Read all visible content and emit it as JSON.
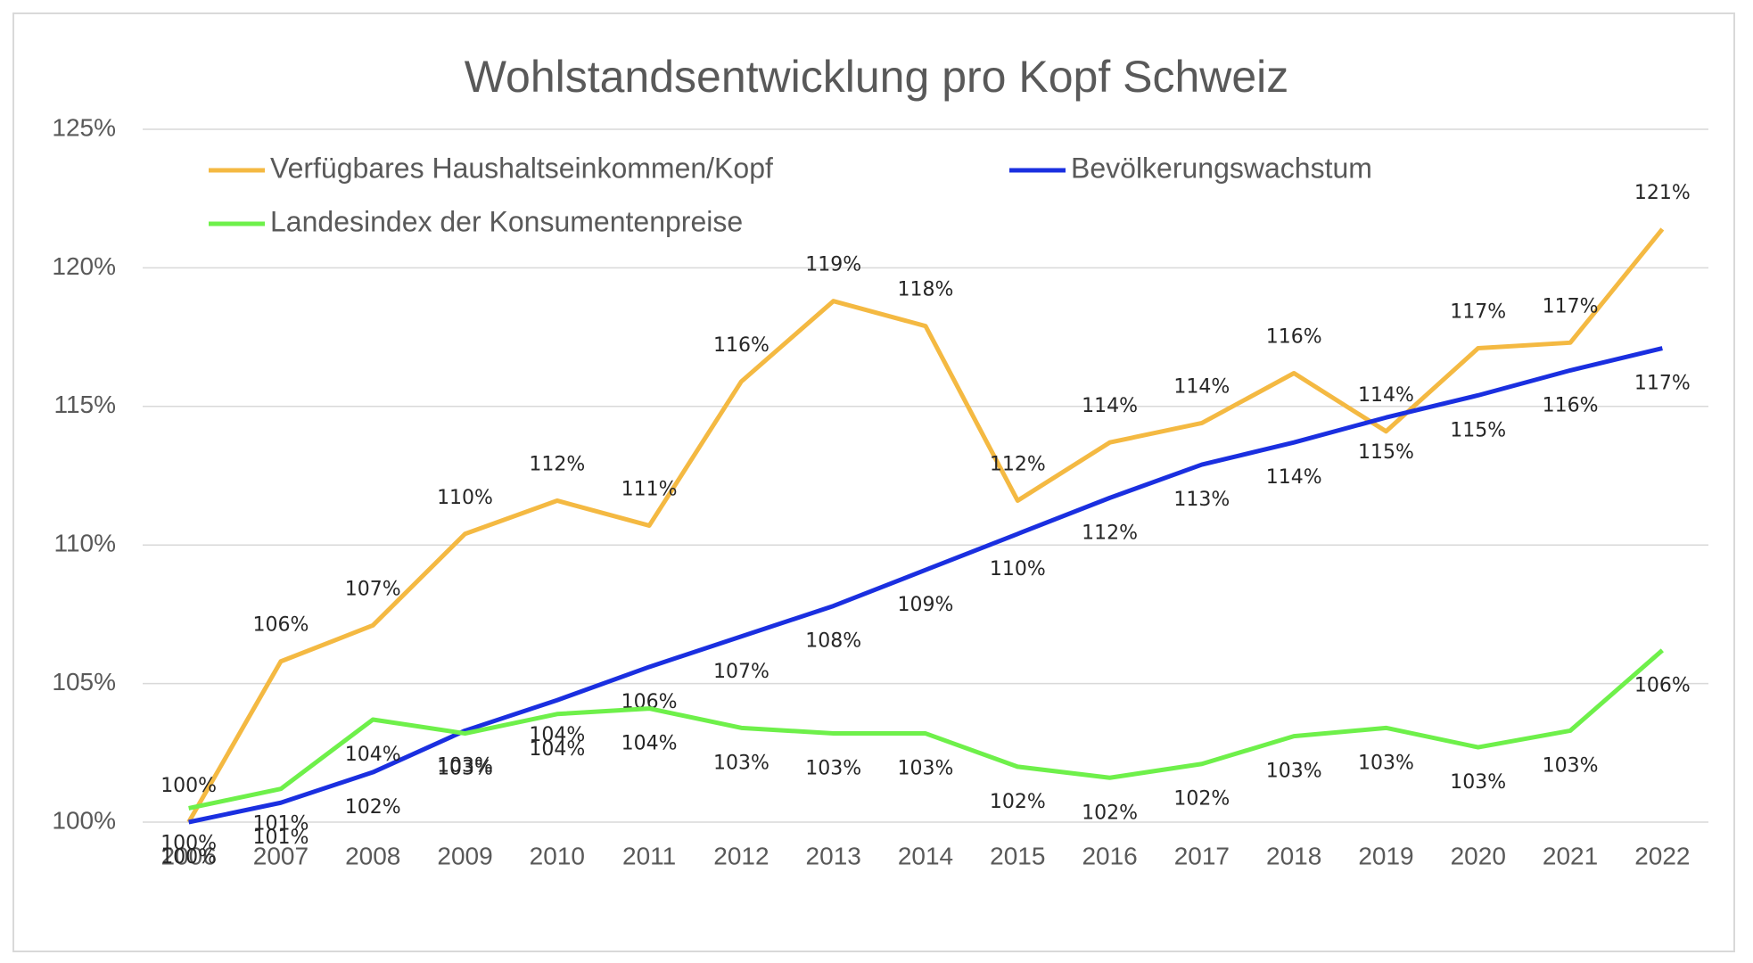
{
  "chart_data": {
    "type": "line",
    "title": "Wohlstandsentwicklung pro Kopf Schweiz",
    "categories": [
      "2006",
      "2007",
      "2008",
      "2009",
      "2010",
      "2011",
      "2012",
      "2013",
      "2014",
      "2015",
      "2016",
      "2017",
      "2018",
      "2019",
      "2020",
      "2021",
      "2022"
    ],
    "series": [
      {
        "name": "Verfügbares Haushaltseinkommen/Kopf",
        "color": "#f4b942",
        "values": [
          100.0,
          105.8,
          107.1,
          110.4,
          111.6,
          110.7,
          115.9,
          118.8,
          117.9,
          111.6,
          113.7,
          114.4,
          116.2,
          114.1,
          117.1,
          117.3,
          121.4
        ],
        "value_labels": [
          "100%",
          "106%",
          "107%",
          "110%",
          "112%",
          "111%",
          "116%",
          "119%",
          "118%",
          "112%",
          "114%",
          "114%",
          "116%",
          "114%",
          "117%",
          "117%",
          "121%"
        ]
      },
      {
        "name": "Bevölkerungswachstum",
        "color": "#1a2fe0",
        "values": [
          100.0,
          100.7,
          101.8,
          103.3,
          104.4,
          105.6,
          106.7,
          107.8,
          109.1,
          110.4,
          111.7,
          112.9,
          113.7,
          114.6,
          115.4,
          116.3,
          117.1
        ],
        "value_labels": [
          "100%",
          "101%",
          "102%",
          "103%",
          "104%",
          "106%",
          "107%",
          "108%",
          "109%",
          "110%",
          "112%",
          "113%",
          "114%",
          "115%",
          "115%",
          "116%",
          "117%"
        ]
      },
      {
        "name": "Landesindex der Konsumentenpreise",
        "color": "#6ef04a",
        "values": [
          100.5,
          101.2,
          103.7,
          103.2,
          103.9,
          104.1,
          103.4,
          103.2,
          103.2,
          102.0,
          101.6,
          102.1,
          103.1,
          103.4,
          102.7,
          103.3,
          106.2
        ],
        "value_labels": [
          "100%",
          "101%",
          "104%",
          "103%",
          "104%",
          "104%",
          "103%",
          "103%",
          "103%",
          "102%",
          "102%",
          "102%",
          "103%",
          "103%",
          "103%",
          "103%",
          "106%"
        ]
      }
    ],
    "ylim": [
      100,
      125
    ],
    "yticks": [
      {
        "value": 100,
        "label": "100%"
      },
      {
        "value": 105,
        "label": "105%"
      },
      {
        "value": 110,
        "label": "110%"
      },
      {
        "value": 115,
        "label": "115%"
      },
      {
        "value": 120,
        "label": "120%"
      },
      {
        "value": 125,
        "label": "125%"
      }
    ],
    "grid": true,
    "legend": "top-left"
  }
}
